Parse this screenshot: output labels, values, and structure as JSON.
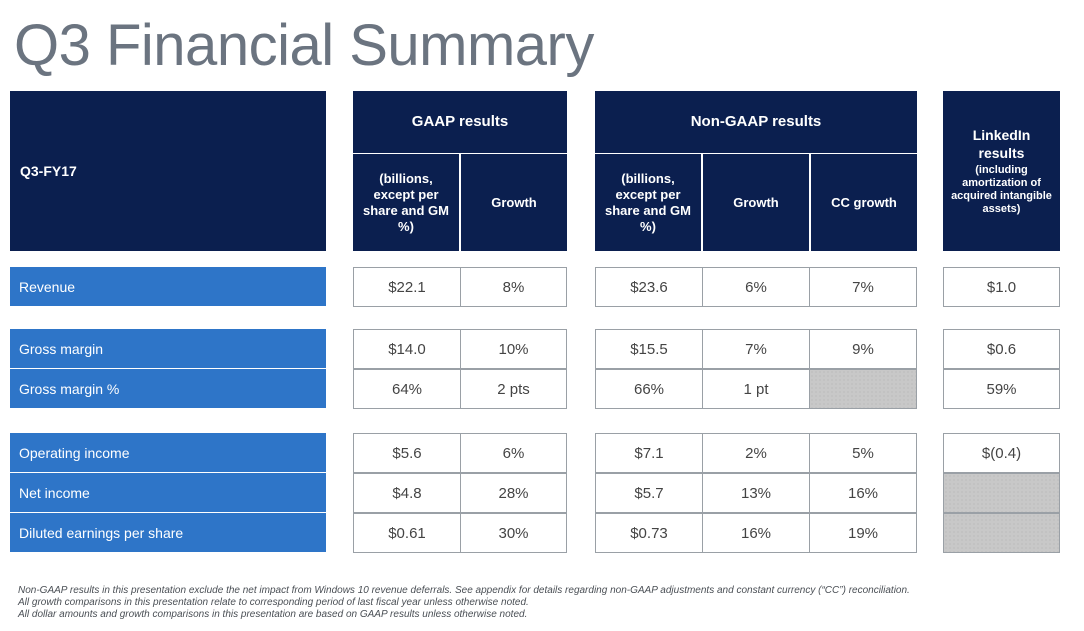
{
  "title": "Q3 Financial Summary",
  "period_label": "Q3-FY17",
  "groups": {
    "gaap": "GAAP results",
    "nongaap": "Non-GAAP results",
    "linkedin_title": "LinkedIn results",
    "linkedin_sub": "(including amortization of acquired intangible assets)"
  },
  "subheaders": {
    "gaap_value": "(billions, except per share and GM %)",
    "gaap_growth": "Growth",
    "ng_value": "(billions, except per share and GM %)",
    "ng_growth": "Growth",
    "ng_cc": "CC growth"
  },
  "rows": [
    {
      "label": "Revenue",
      "gaap": "$22.1",
      "gaap_growth": "8%",
      "ng": "$23.6",
      "ng_growth": "6%",
      "ng_cc": "7%",
      "linkedin": "$1.0"
    },
    {
      "label": "Gross margin",
      "gaap": "$14.0",
      "gaap_growth": "10%",
      "ng": "$15.5",
      "ng_growth": "7%",
      "ng_cc": "9%",
      "linkedin": "$0.6"
    },
    {
      "label": "Gross margin %",
      "gaap": "64%",
      "gaap_growth": "2 pts",
      "ng": "66%",
      "ng_growth": "1 pt",
      "ng_cc": "",
      "linkedin": "59%"
    },
    {
      "label": "Operating income",
      "gaap": "$5.6",
      "gaap_growth": "6%",
      "ng": "$7.1",
      "ng_growth": "2%",
      "ng_cc": "5%",
      "linkedin": "$(0.4)"
    },
    {
      "label": "Net income",
      "gaap": "$4.8",
      "gaap_growth": "28%",
      "ng": "$5.7",
      "ng_growth": "13%",
      "ng_cc": "16%",
      "linkedin": ""
    },
    {
      "label": "Diluted earnings per share",
      "gaap": "$0.61",
      "gaap_growth": "30%",
      "ng": "$0.73",
      "ng_growth": "16%",
      "ng_cc": "19%",
      "linkedin": ""
    }
  ],
  "footnotes": [
    "Non-GAAP results in this presentation exclude the net impact from Windows 10 revenue deferrals. See appendix for details regarding non-GAAP adjustments and constant currency (“CC”) reconciliation.",
    "All growth comparisons in this presentation relate to corresponding period of last fiscal year unless otherwise noted.",
    "All dollar amounts and growth comparisons in this presentation are based on GAAP results unless otherwise noted."
  ]
}
